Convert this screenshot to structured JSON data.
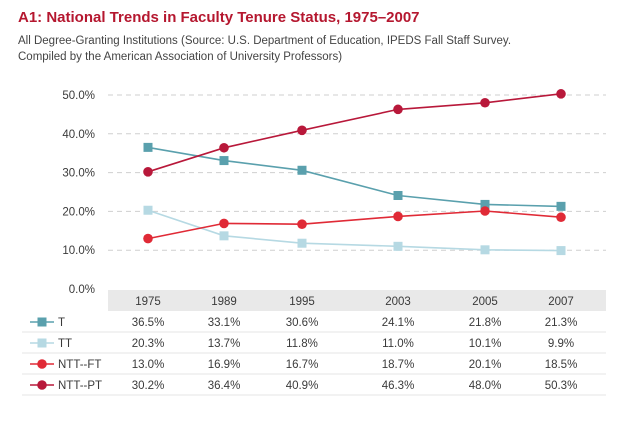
{
  "chart_data": {
    "type": "line",
    "title": "A1: National Trends in Faculty Tenure Status, 1975–2007",
    "subtitle_lines": [
      "All Degree-Granting Institutions (Source: U.S. Department of Education, IPEDS Fall Staff Survey.",
      "Compiled by the American Association of University Professors)"
    ],
    "xlabel": "",
    "ylabel": "",
    "ylim": [
      0,
      50
    ],
    "yticks": [
      "0.0%",
      "10.0%",
      "20.0%",
      "30.0%",
      "40.0%",
      "50.0%"
    ],
    "ytick_values": [
      0,
      10,
      20,
      30,
      40,
      50
    ],
    "categories": [
      "1975",
      "1989",
      "1995",
      "2003",
      "2005",
      "2007"
    ],
    "series": [
      {
        "name": "T",
        "marker": "square",
        "color": "#5aa0ad",
        "values": [
          36.5,
          33.1,
          30.6,
          24.1,
          21.8,
          21.3
        ],
        "labels": [
          "36.5%",
          "33.1%",
          "30.6%",
          "24.1%",
          "21.8%",
          "21.3%"
        ]
      },
      {
        "name": "TT",
        "marker": "square",
        "color": "#b6d9e3",
        "values": [
          20.3,
          13.7,
          11.8,
          11.0,
          10.1,
          9.9
        ],
        "labels": [
          "20.3%",
          "13.7%",
          "11.8%",
          "11.0%",
          "10.1%",
          "9.9%"
        ]
      },
      {
        "name": "NTT--FT",
        "marker": "circle",
        "color": "#e02a36",
        "values": [
          13.0,
          16.9,
          16.7,
          18.7,
          20.1,
          18.5
        ],
        "labels": [
          "13.0%",
          "16.9%",
          "16.7%",
          "18.7%",
          "20.1%",
          "18.5%"
        ]
      },
      {
        "name": "NTT--PT",
        "marker": "circle",
        "color": "#b8183a",
        "values": [
          30.2,
          36.4,
          40.9,
          46.3,
          48.0,
          50.3
        ],
        "labels": [
          "30.2%",
          "36.4%",
          "40.9%",
          "46.3%",
          "48.0%",
          "50.3%"
        ]
      }
    ],
    "grid": true,
    "legend": "table-below"
  }
}
